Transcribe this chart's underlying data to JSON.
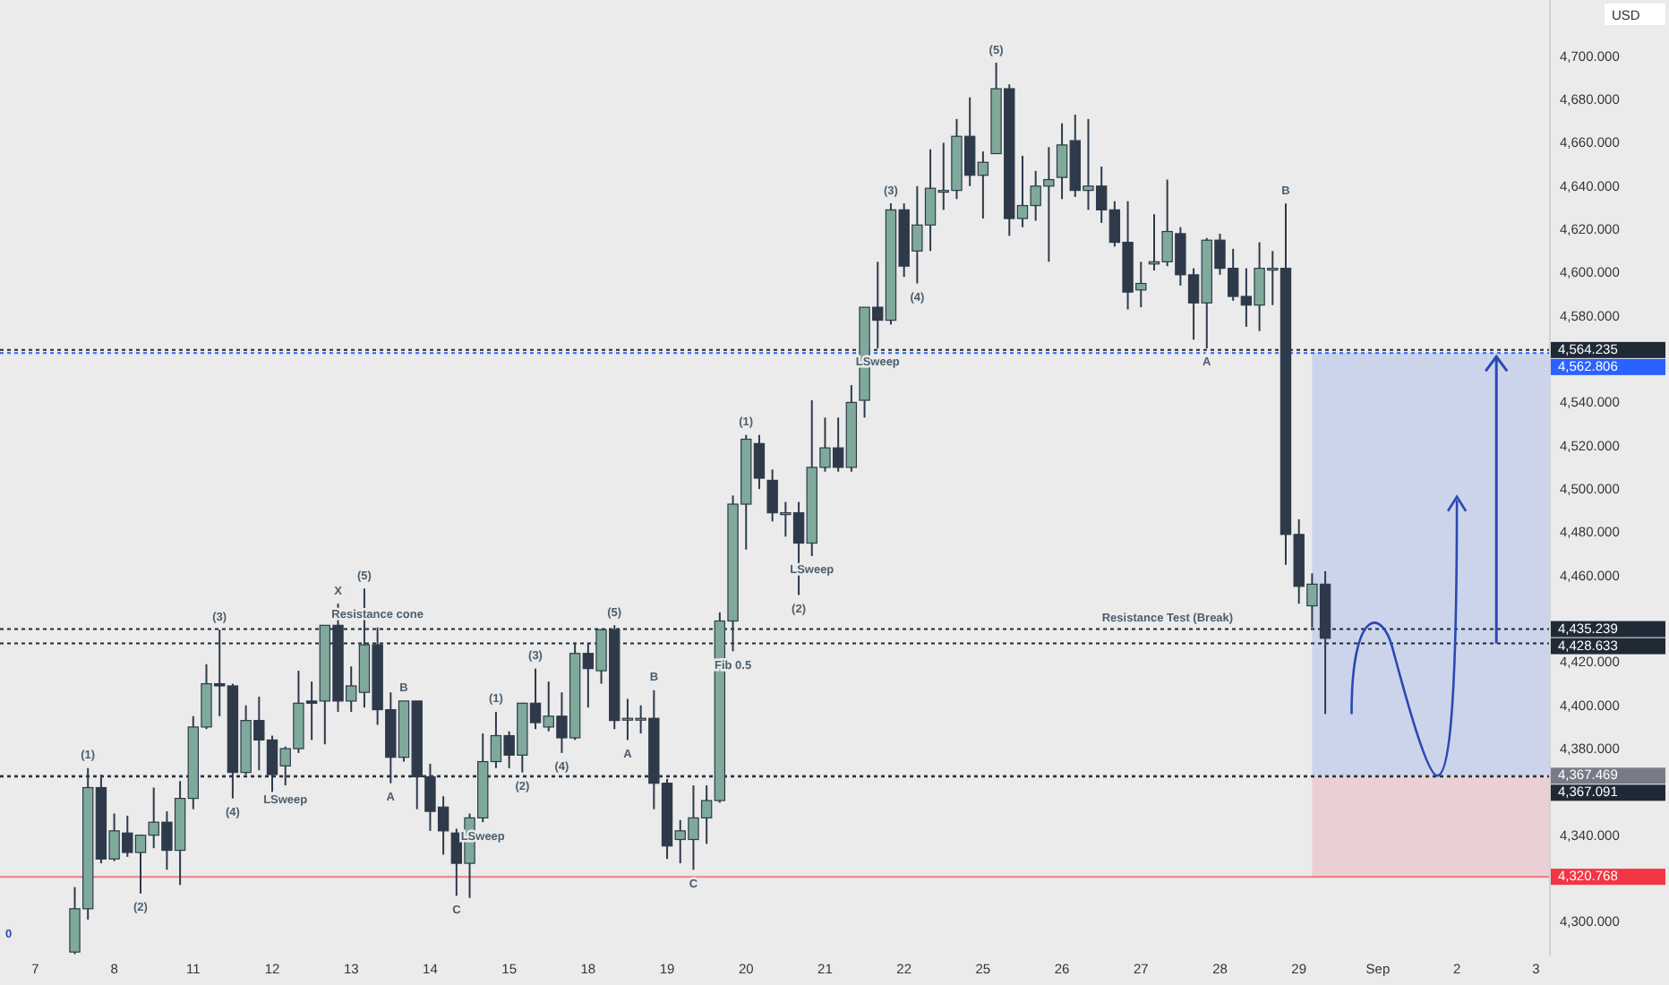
{
  "chart_data": {
    "type": "candlestick",
    "ylabel": "USD",
    "categories": [
      null,
      null,
      "7",
      null,
      null,
      null,
      null,
      null,
      "8",
      null,
      null,
      null,
      null,
      null,
      "11",
      null,
      null,
      null,
      null,
      null,
      "12",
      null,
      null,
      null,
      null,
      null,
      "13",
      null,
      null,
      null,
      null,
      null,
      "14",
      null,
      null,
      null,
      null,
      null,
      "15",
      null,
      null,
      null,
      null,
      null,
      "18",
      null,
      null,
      null,
      null,
      null,
      "19",
      null,
      null,
      null,
      null,
      null,
      "20",
      null,
      null,
      null,
      null,
      null,
      "21",
      null,
      null,
      null,
      null,
      null,
      "22",
      null,
      null,
      null,
      null,
      null,
      "25",
      null,
      null,
      null,
      null,
      null,
      "26",
      null,
      null,
      null,
      null,
      null,
      "27",
      null,
      null,
      null,
      null,
      null,
      "28",
      null,
      null,
      null,
      null,
      null,
      "29",
      null,
      null,
      null,
      null,
      null,
      "Sep",
      null,
      null,
      null,
      null,
      null,
      "2",
      null,
      null,
      null,
      null,
      null,
      "3",
      null
    ],
    "ohlc": [
      null,
      null,
      null,
      null,
      null,
      [
        4286,
        4316,
        4285,
        4306
      ],
      [
        4306,
        4371,
        4301,
        4362
      ],
      [
        4362,
        4368,
        4327,
        4329
      ],
      [
        4329,
        4350,
        4328,
        4342
      ],
      [
        4341,
        4349,
        4330,
        4332
      ],
      [
        4332,
        4340,
        4313,
        4340
      ],
      [
        4340,
        4362,
        4334,
        4346
      ],
      [
        4346,
        4351,
        4324,
        4333
      ],
      [
        4333,
        4365,
        4317,
        4357
      ],
      [
        4357,
        4395,
        4352,
        4390
      ],
      [
        4390,
        4419,
        4389,
        4410
      ],
      [
        4410,
        4435,
        4395,
        4409
      ],
      [
        4409,
        4410,
        4357,
        4369
      ],
      [
        4369,
        4400,
        4368,
        4393
      ],
      [
        4393,
        4404,
        4370,
        4384
      ],
      [
        4384,
        4386,
        4360,
        4368
      ],
      [
        4372,
        4381,
        4363,
        4380
      ],
      [
        4380,
        4416,
        4378,
        4401
      ],
      [
        4402,
        4411,
        4384,
        4401
      ],
      [
        4402,
        4437,
        4382,
        4437
      ],
      [
        4437,
        4447,
        4397,
        4402
      ],
      [
        4402,
        4418,
        4397,
        4409
      ],
      [
        4406,
        4454,
        4399,
        4428
      ],
      [
        4428,
        4436,
        4391,
        4398
      ],
      [
        4398,
        4406,
        4364,
        4376
      ],
      [
        4376,
        4402,
        4374,
        4402
      ],
      [
        4402,
        4402,
        4352,
        4367
      ],
      [
        4367,
        4373,
        4342,
        4351
      ],
      [
        4353,
        4358,
        4331,
        4342
      ],
      [
        4341,
        4343,
        4312,
        4327
      ],
      [
        4327,
        4350,
        4311,
        4348
      ],
      [
        4348,
        4387,
        4346,
        4374
      ],
      [
        4374,
        4397,
        4371,
        4386
      ],
      [
        4386,
        4388,
        4371,
        4377
      ],
      [
        4377,
        4401,
        4369,
        4401
      ],
      [
        4401,
        4417,
        4389,
        4392
      ],
      [
        4390,
        4411,
        4388,
        4395
      ],
      [
        4395,
        4406,
        4378,
        4385
      ],
      [
        4385,
        4429,
        4384,
        4424
      ],
      [
        4424,
        4429,
        4399,
        4417
      ],
      [
        4416,
        4435,
        4410,
        4435
      ],
      [
        4435,
        4437,
        4389,
        4393
      ],
      [
        4394,
        4403,
        4384,
        4394
      ],
      [
        4394,
        4400,
        4387,
        4394
      ],
      [
        4394,
        4407,
        4352,
        4364
      ],
      [
        4364,
        4366,
        4329,
        4335
      ],
      [
        4338,
        4347,
        4327,
        4342
      ],
      [
        4338,
        4363,
        4324,
        4348
      ],
      [
        4348,
        4363,
        4336,
        4356
      ],
      [
        4356,
        4443,
        4355,
        4439
      ],
      [
        4439,
        4497,
        4425,
        4493
      ],
      [
        4493,
        4525,
        4472,
        4523
      ],
      [
        4521,
        4525,
        4500,
        4505
      ],
      [
        4504,
        4509,
        4485,
        4489
      ],
      [
        4489,
        4494,
        4478,
        4489
      ],
      [
        4489,
        4494,
        4451,
        4475
      ],
      [
        4475,
        4541,
        4469,
        4510
      ],
      [
        4510,
        4533,
        4508,
        4519
      ],
      [
        4519,
        4533,
        4508,
        4510
      ],
      [
        4510,
        4548,
        4508,
        4540
      ],
      [
        4541,
        4584,
        4533,
        4584
      ],
      [
        4584,
        4605,
        4565,
        4578
      ],
      [
        4578,
        4632,
        4576,
        4629
      ],
      [
        4629,
        4632,
        4598,
        4603
      ],
      [
        4610,
        4640,
        4595,
        4622
      ],
      [
        4622,
        4657,
        4610,
        4639
      ],
      [
        4638,
        4660,
        4629,
        4638
      ],
      [
        4638,
        4671,
        4634,
        4663
      ],
      [
        4663,
        4681,
        4640,
        4645
      ],
      [
        4645,
        4656,
        4625,
        4651
      ],
      [
        4655,
        4697,
        4655,
        4685
      ],
      [
        4685,
        4687,
        4617,
        4625
      ],
      [
        4625,
        4654,
        4621,
        4631
      ],
      [
        4631,
        4647,
        4624,
        4640
      ],
      [
        4640,
        4658,
        4605,
        4643
      ],
      [
        4644,
        4669,
        4634,
        4659
      ],
      [
        4661,
        4673,
        4635,
        4638
      ],
      [
        4638,
        4671,
        4629,
        4640
      ],
      [
        4640,
        4649,
        4623,
        4629
      ],
      [
        4629,
        4633,
        4612,
        4614
      ],
      [
        4614,
        4633,
        4583,
        4591
      ],
      [
        4592,
        4605,
        4584,
        4595
      ],
      [
        4604,
        4627,
        4601,
        4605
      ],
      [
        4605,
        4643,
        4603,
        4619
      ],
      [
        4618,
        4621,
        4594,
        4599
      ],
      [
        4599,
        4602,
        4569,
        4586
      ],
      [
        4586,
        4616,
        4565,
        4615
      ],
      [
        4615,
        4618,
        4599,
        4602
      ],
      [
        4602,
        4611,
        4587,
        4589
      ],
      [
        4589,
        4602,
        4575,
        4585
      ],
      [
        4585,
        4614,
        4573,
        4602
      ],
      [
        4602,
        4610,
        4585,
        4602
      ],
      [
        4602,
        4632,
        4465,
        4479
      ],
      [
        4479,
        4486,
        4447,
        4455
      ],
      [
        4446,
        4461,
        4436,
        4456
      ],
      [
        4456,
        4462,
        4396,
        4431
      ],
      null,
      null,
      null,
      null,
      null,
      null,
      null,
      null,
      null,
      null,
      null,
      null,
      null,
      null,
      null,
      null,
      null
    ],
    "ylim": [
      4284,
      4726
    ],
    "yticks": [
      {
        "value": 4300,
        "label": "4,300.000"
      },
      {
        "value": 4340,
        "label": "4,340.000"
      },
      {
        "value": 4380,
        "label": "4,380.000"
      },
      {
        "value": 4400,
        "label": "4,400.000"
      },
      {
        "value": 4420,
        "label": "4,420.000"
      },
      {
        "value": 4460,
        "label": "4,460.000"
      },
      {
        "value": 4480,
        "label": "4,480.000"
      },
      {
        "value": 4500,
        "label": "4,500.000"
      },
      {
        "value": 4520,
        "label": "4,520.000"
      },
      {
        "value": 4540,
        "label": "4,540.000"
      },
      {
        "value": 4580,
        "label": "4,580.000"
      },
      {
        "value": 4600,
        "label": "4,600.000"
      },
      {
        "value": 4620,
        "label": "4,620.000"
      },
      {
        "value": 4640,
        "label": "4,640.000"
      },
      {
        "value": 4660,
        "label": "4,660.000"
      },
      {
        "value": 4680,
        "label": "4,680.000"
      },
      {
        "value": 4700,
        "label": "4,700.000"
      }
    ],
    "ref_lines": [
      {
        "axis": "y",
        "value": 4564.235,
        "label": "4,564.235",
        "color": "#1f2a36",
        "line_style": "dotted"
      },
      {
        "axis": "y",
        "value": 4562.806,
        "label": "4,562.806",
        "color": "#2962ff",
        "line_style": "dotted"
      },
      {
        "axis": "y",
        "value": 4435.239,
        "label": "4,435.239",
        "color": "#1f2a36",
        "line_style": "dotted"
      },
      {
        "axis": "y",
        "value": 4428.633,
        "label": "4,428.633",
        "color": "#1f2a36",
        "line_style": "dotted"
      },
      {
        "axis": "y",
        "value": 4367.469,
        "label": "4,367.469",
        "color": "#787b86",
        "line_style": "dotted"
      },
      {
        "axis": "y",
        "value": 4367.091,
        "label": "4,367.091",
        "color": "#1f2a36",
        "line_style": "dotted"
      },
      {
        "axis": "y",
        "value": 4320.768,
        "label": "4,320.768",
        "color": "#f23645",
        "line_style": "solid"
      }
    ],
    "bands": [
      {
        "axis": "y",
        "from": 4367.469,
        "to": 4562.806,
        "color": "#c8d2ea"
      },
      {
        "axis": "y",
        "from": 4320.768,
        "to": 4367.469,
        "color": "#eacdd2"
      }
    ],
    "annotations": [
      "0",
      {
        "text": "(1)",
        "y": 4371
      },
      {
        "text": "(2)",
        "y": 4313
      },
      {
        "text": "(3)",
        "y": 4435
      },
      {
        "text": "(4)",
        "y": 4357
      },
      {
        "text": "LSweep",
        "y": 4363
      },
      {
        "text": "X",
        "y": 4447
      },
      {
        "text": "(5)",
        "y": 4454
      },
      {
        "text": "Resistance cone",
        "y": 4436
      },
      {
        "text": "A",
        "y": 4364
      },
      {
        "text": "B",
        "y": 4402
      },
      {
        "text": "C",
        "y": 4312
      },
      {
        "text": "LSweep",
        "y": 4346
      },
      {
        "text": "(1)",
        "y": 4397
      },
      {
        "text": "(2)",
        "y": 4369
      },
      {
        "text": "(3)",
        "y": 4417
      },
      {
        "text": "(4)",
        "y": 4378
      },
      {
        "text": "(5)",
        "y": 4437
      },
      {
        "text": "A",
        "y": 4384
      },
      {
        "text": "B",
        "y": 4407
      },
      {
        "text": "C",
        "y": 4324
      },
      {
        "text": "Fib 0.5",
        "y": 4425
      },
      {
        "text": "(1)",
        "y": 4525
      },
      {
        "text": "(2)",
        "y": 4451
      },
      {
        "text": "LSweep",
        "y": 4469
      },
      {
        "text": "LSweep",
        "y": 4565
      },
      {
        "text": "(3)",
        "y": 4632
      },
      {
        "text": "(4)",
        "y": 4595
      },
      {
        "text": "(5)",
        "y": 4697
      },
      {
        "text": "A",
        "y": 4565
      },
      {
        "text": "B",
        "y": 4632
      },
      {
        "text": "Resistance Test (Break)",
        "y": 4435.239
      }
    ]
  }
}
